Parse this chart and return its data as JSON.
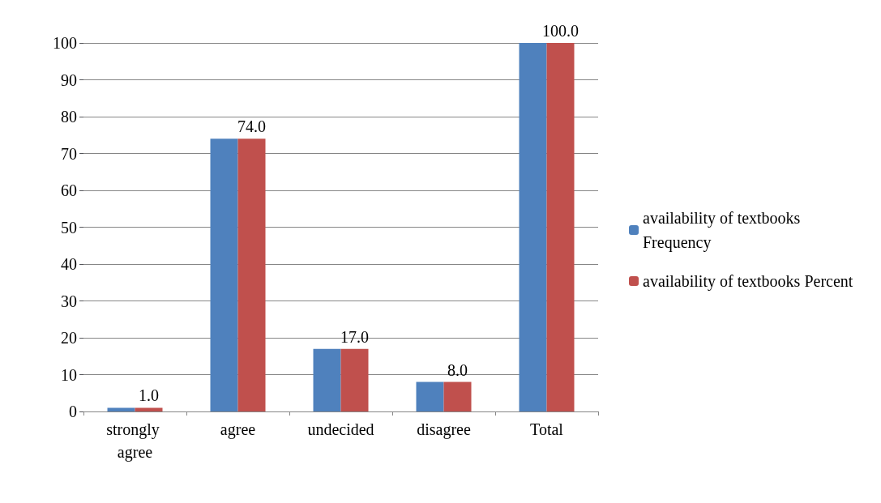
{
  "chart_data": {
    "type": "bar",
    "categories": [
      "strongly agree",
      "agree",
      "undecided",
      "disagree",
      "Total"
    ],
    "series": [
      {
        "name": "availability of textbooks Frequency",
        "color": "#4f81bd",
        "values": [
          1,
          74,
          17,
          8,
          100
        ]
      },
      {
        "name": "availability of textbooks Percent",
        "color": "#c0504d",
        "values": [
          1,
          74,
          17,
          8,
          100
        ],
        "value_labels": [
          "1.0",
          "74.0",
          "17.0",
          "8.0",
          "100.0"
        ]
      }
    ],
    "ylim": [
      0,
      100
    ],
    "yticks": [
      0,
      10,
      20,
      30,
      40,
      50,
      60,
      70,
      80,
      90,
      100
    ],
    "grid": "y",
    "legend": "right"
  }
}
